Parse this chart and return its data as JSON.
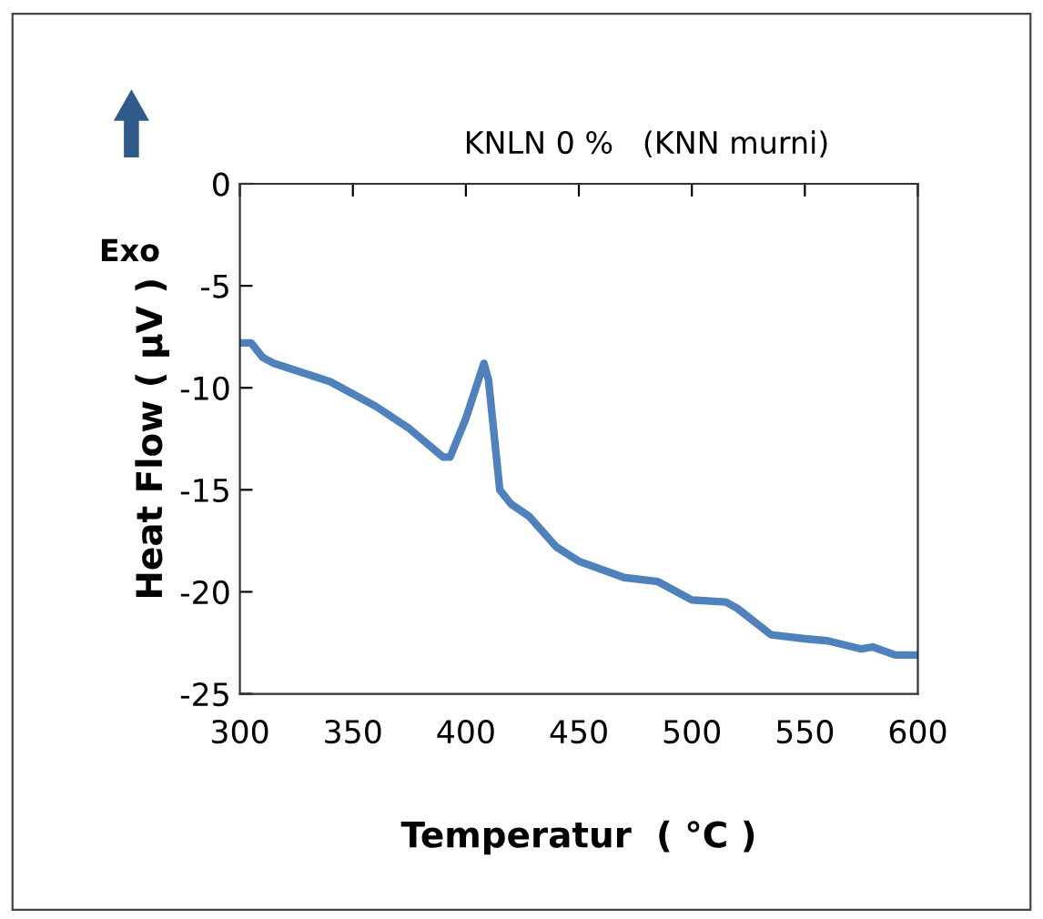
{
  "chart_data": {
    "type": "line",
    "title": "KNLN 0 %   (KNN murni)",
    "xlabel": "Temperatur  ( °C )",
    "ylabel": "Heat Flow ( μV )",
    "annotations": [
      "Exo"
    ],
    "x": [
      300,
      305,
      310,
      315,
      340,
      360,
      375,
      390,
      393,
      400,
      408,
      410,
      415,
      420,
      428,
      440,
      450,
      470,
      485,
      500,
      515,
      520,
      535,
      550,
      560,
      575,
      580,
      590,
      600
    ],
    "series": [
      {
        "color": "#4f81bd",
        "values": [
          -7.8,
          -7.8,
          -8.5,
          -8.8,
          -9.7,
          -10.9,
          -12,
          -13.4,
          -13.4,
          -11.5,
          -8.8,
          -9.6,
          -15,
          -15.7,
          -16.3,
          -17.8,
          -18.5,
          -19.3,
          -19.5,
          -20.4,
          -20.5,
          -20.8,
          -22.1,
          -22.3,
          -22.4,
          -22.8,
          -22.7,
          -23.1,
          -23.1
        ]
      }
    ],
    "xlim": [
      300,
      600
    ],
    "xticks": [
      300,
      350,
      400,
      450,
      500,
      550,
      600
    ],
    "ylim": [
      -25,
      0
    ],
    "yticks": [
      0,
      -5,
      -10,
      -15,
      -20,
      -25
    ],
    "grid": false,
    "legend": false,
    "marker": "none",
    "line_style": "solid"
  }
}
